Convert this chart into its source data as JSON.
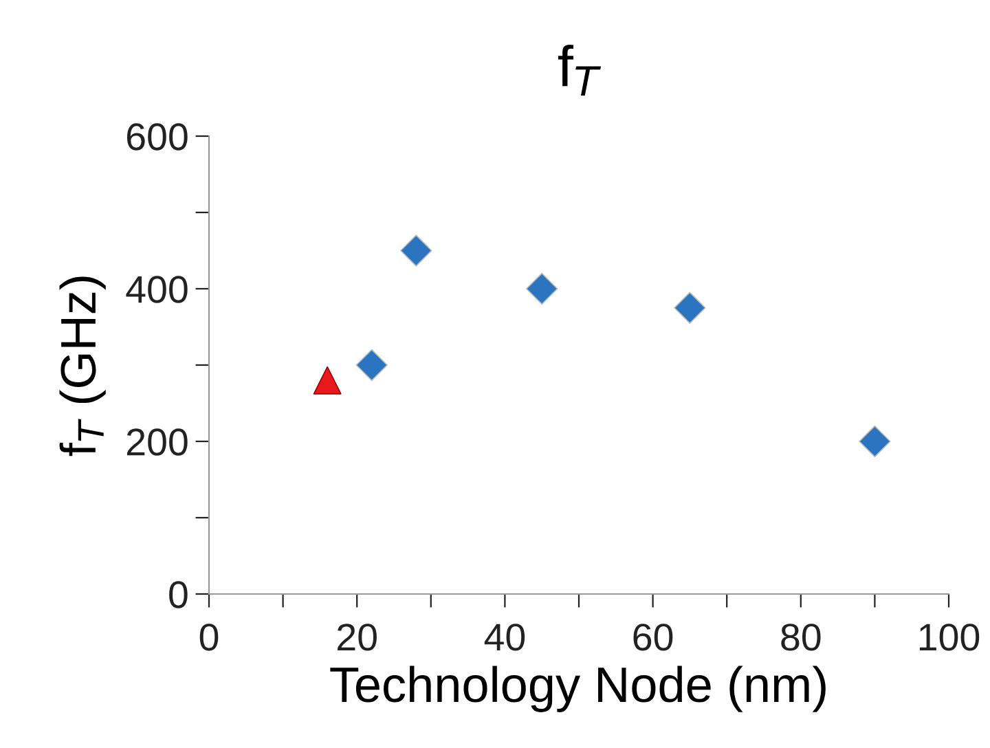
{
  "chart_data": {
    "type": "scatter",
    "title": "f$_{T}$",
    "xlabel": "Technology Node (nm)",
    "ylabel": "f$_{T}$ (GHz)",
    "series": [
      {
        "color": "#e8191c",
        "marker": "triangle",
        "x": [
          16
        ],
        "values": [
          280
        ]
      },
      {
        "color": "#2a74c0",
        "marker": "diamond",
        "x": [
          22,
          28,
          45,
          65,
          90
        ],
        "values": [
          300,
          450,
          400,
          375,
          200
        ]
      }
    ],
    "xlim": [
      0,
      100
    ],
    "ylim": [
      0,
      600
    ],
    "xticks": [
      0,
      {
        "value": 10,
        "label": null
      },
      20,
      {
        "value": 30,
        "label": null
      },
      40,
      {
        "value": 50,
        "label": null
      },
      60,
      {
        "value": 70,
        "label": null
      },
      80,
      {
        "value": 90,
        "label": null
      },
      100
    ],
    "yticks": [
      0,
      {
        "value": 100,
        "label": null
      },
      200,
      {
        "value": 300,
        "label": null
      },
      400,
      {
        "value": 500,
        "label": null
      },
      600
    ],
    "grid": false,
    "legend": false
  }
}
